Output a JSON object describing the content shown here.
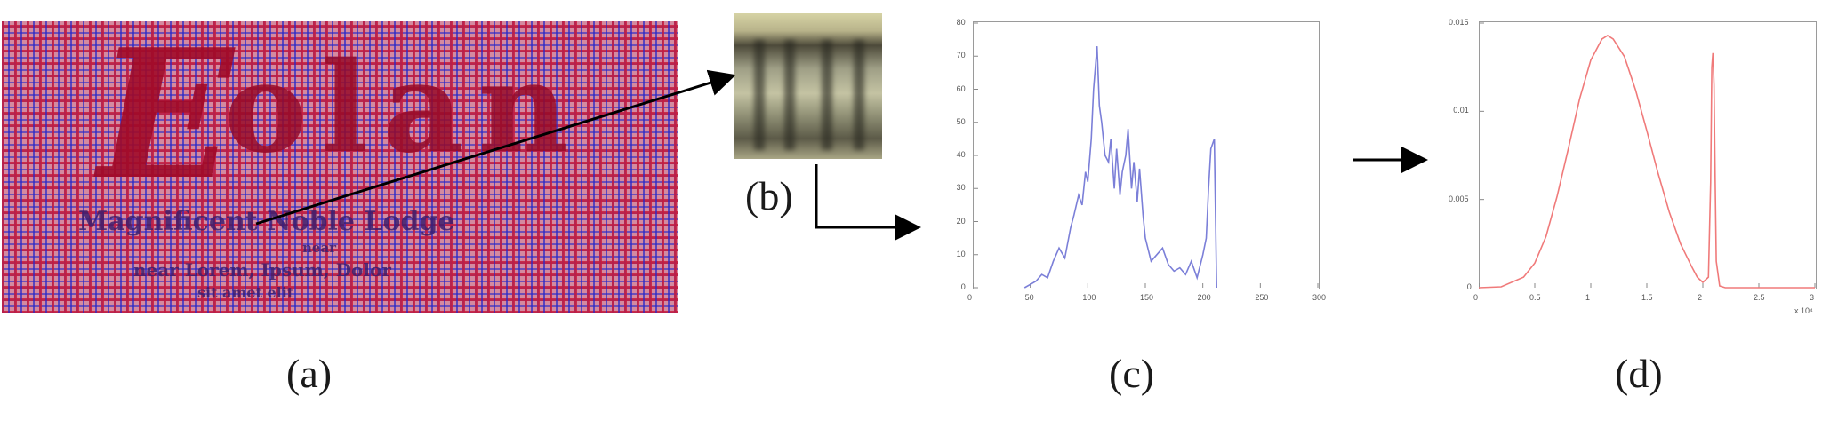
{
  "labels": {
    "a": "(a)",
    "b": "(b)",
    "c": "(c)",
    "d": "(d)"
  },
  "panel_a": {
    "title": "Eolan",
    "line1": "Magnificent Noble Lodge",
    "line2": "near",
    "line3": "near Lorem, Ipsum, Dolor",
    "line4": "sit amet elit"
  },
  "colors": {
    "hist_line": "#7b7fd8",
    "pdf_line": "#f07a7a",
    "arrow": "#000000"
  },
  "chart_data": [
    {
      "type": "line",
      "id": "c",
      "xlim": [
        0,
        300
      ],
      "ylim": [
        0,
        80
      ],
      "xticks": [
        0,
        50,
        100,
        150,
        200,
        250,
        300
      ],
      "yticks": [
        0,
        10,
        20,
        30,
        40,
        50,
        60,
        70,
        80
      ],
      "series": [
        {
          "x": [
            45,
            50,
            55,
            60,
            65,
            70,
            75,
            80,
            85,
            88,
            92,
            95,
            98,
            100,
            103,
            105,
            108,
            110,
            112,
            115,
            118,
            120,
            123,
            125,
            128,
            130,
            133,
            135,
            138,
            140,
            143,
            145,
            148,
            150,
            155,
            160,
            165,
            170,
            175,
            180,
            185,
            190,
            195,
            200,
            203,
            205,
            207,
            210,
            212
          ],
          "y": [
            0,
            1,
            2,
            4,
            3,
            8,
            12,
            9,
            18,
            22,
            28,
            25,
            35,
            32,
            45,
            60,
            73,
            55,
            50,
            40,
            38,
            45,
            30,
            42,
            28,
            35,
            40,
            48,
            30,
            38,
            26,
            36,
            22,
            15,
            8,
            10,
            12,
            7,
            5,
            6,
            4,
            8,
            3,
            10,
            15,
            30,
            42,
            45,
            0
          ]
        }
      ]
    },
    {
      "type": "line",
      "id": "d",
      "xlim": [
        0,
        3
      ],
      "ylim": [
        0,
        0.015
      ],
      "xticks": [
        "0",
        "0.5",
        "1",
        "1.5",
        "2",
        "2.5",
        "3"
      ],
      "yticks": [
        "0",
        "0.005",
        "0.01",
        "0.015"
      ],
      "xscale_note": "x 10⁴",
      "series": [
        {
          "x": [
            0,
            0.2,
            0.4,
            0.5,
            0.6,
            0.7,
            0.8,
            0.9,
            1.0,
            1.1,
            1.15,
            1.2,
            1.3,
            1.4,
            1.5,
            1.6,
            1.7,
            1.8,
            1.9,
            1.95,
            2.0,
            2.05,
            2.07,
            2.08,
            2.09,
            2.1,
            2.11,
            2.12,
            2.15,
            2.2,
            2.5,
            3.0
          ],
          "y": [
            0,
            5e-05,
            0.0006,
            0.0014,
            0.0029,
            0.0052,
            0.0079,
            0.0107,
            0.0129,
            0.0141,
            0.0143,
            0.0141,
            0.0131,
            0.0112,
            0.0089,
            0.0065,
            0.0043,
            0.0025,
            0.0012,
            0.0006,
            0.0003,
            0.0006,
            0.006,
            0.0125,
            0.0133,
            0.0115,
            0.006,
            0.0015,
            0.0001,
            0,
            0,
            0
          ]
        }
      ]
    }
  ]
}
